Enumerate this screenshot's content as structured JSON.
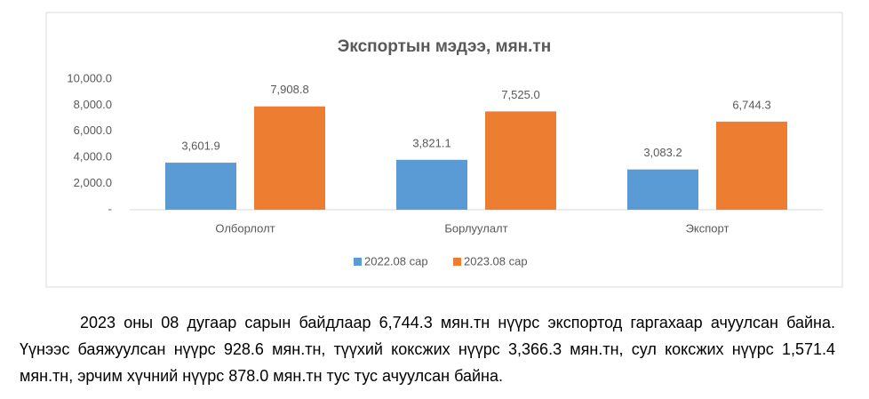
{
  "chart_data": {
    "type": "bar",
    "title": "Экспортын мэдээ, мян.тн",
    "categories": [
      "Олборлолт",
      "Борлуулалт",
      "Экспорт"
    ],
    "series": [
      {
        "name": "2022.08 сар",
        "color": "#5b9bd5",
        "values": [
          3601.9,
          3821.1,
          3083.2
        ],
        "value_labels": [
          "3,601.9",
          "3,821.1",
          "3,083.2"
        ]
      },
      {
        "name": "2023.08 сар",
        "color": "#ed7d31",
        "values": [
          7908.8,
          7525.0,
          6744.3
        ],
        "value_labels": [
          "7,908.8",
          "7,525.0",
          "6,744.3"
        ]
      }
    ],
    "ylim": [
      0,
      10000
    ],
    "yticks": [
      {
        "value": 0,
        "label": "-"
      },
      {
        "value": 2000,
        "label": "2,000.0"
      },
      {
        "value": 4000,
        "label": "4,000.0"
      },
      {
        "value": 6000,
        "label": "6,000.0"
      },
      {
        "value": 8000,
        "label": "8,000.0"
      },
      {
        "value": 10000,
        "label": "10,000.0"
      }
    ],
    "legend": "bottom"
  },
  "paragraph": "2023 оны 08 дугаар сарын байдлаар 6,744.3 мян.тн нүүрс экспортод гаргахаар ачуулсан байна. Үүнээс баяжуулсан нүүрс 928.6 мян.тн, түүхий коксжих нүүрс 3,366.3 мян.тн, сул коксжих нүүрс 1,571.4 мян.тн, эрчим хүчний нүүрс 878.0 мян.тн тус тус ачуулсан байна."
}
